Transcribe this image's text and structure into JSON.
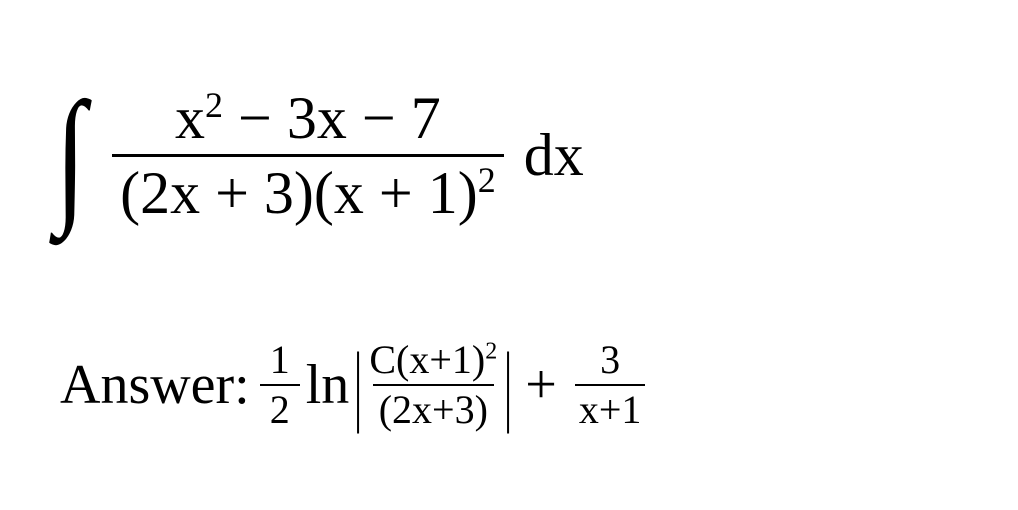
{
  "colors": {
    "text": "#000000",
    "background": "#ffffff",
    "rule": "#000000"
  },
  "typography": {
    "font_family": "Cambria Math, Times New Roman, serif",
    "integral_fontsize": 60,
    "answer_fontsize": 56,
    "small_frac_fontsize": 40,
    "integral_sign_fontsize": 150
  },
  "integral": {
    "sign": "∫",
    "numerator": {
      "x_sq": "x",
      "exp2": "2",
      "minus1": " − 3x − 7"
    },
    "denominator": {
      "part1": "(2x + 3)(x + 1)",
      "exp2": "2"
    },
    "dx": "dx"
  },
  "answer": {
    "label": "Answer:",
    "half": {
      "num": "1",
      "den": "2"
    },
    "ln": "ln",
    "abs_open": "|",
    "abs_close": "|",
    "inner_frac": {
      "num_pre": "C(x+1)",
      "num_exp": "2",
      "den": "(2x+3)"
    },
    "plus": "+",
    "three_over": {
      "num": "3",
      "den": "x+1"
    }
  }
}
